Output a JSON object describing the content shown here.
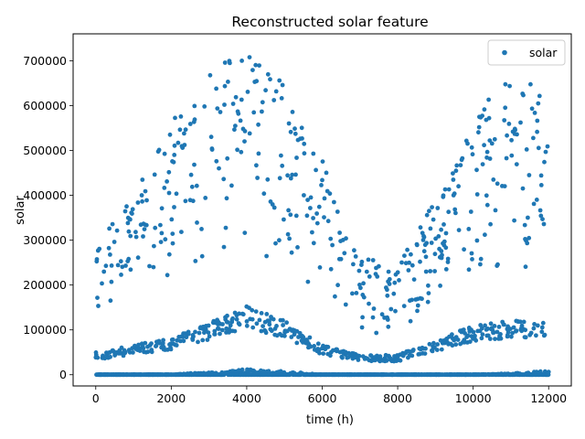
{
  "chart_data": {
    "type": "scatter",
    "title": "Reconstructed solar feature",
    "xlabel": "time (h)",
    "ylabel": "solar",
    "xlim": [
      -600,
      12600
    ],
    "ylim": [
      -25000,
      760000
    ],
    "xticks": [
      0,
      2000,
      4000,
      6000,
      8000,
      10000,
      12000
    ],
    "xtick_labels": [
      "0",
      "2000",
      "4000",
      "6000",
      "8000",
      "10000",
      "12000"
    ],
    "yticks": [
      0,
      100000,
      200000,
      300000,
      400000,
      500000,
      600000,
      700000
    ],
    "ytick_labels": [
      "0",
      "100000",
      "200000",
      "300000",
      "400000",
      "500000",
      "600000",
      "700000"
    ],
    "legend": {
      "position": "top-right",
      "entries": [
        "solar"
      ]
    },
    "grid": false,
    "series": [
      {
        "name": "solar",
        "color": "#1f77b4",
        "marker": "circle",
        "description_of_sampling": "hourly samples over time 0-12000; seasonal envelope with daily scatter",
        "envelope_keypoints": {
          "x": [
            0,
            1000,
            2000,
            3000,
            4000,
            5000,
            6000,
            7000,
            8000,
            9000,
            10000,
            11000,
            12000
          ],
          "peak_upper": [
            285000,
            400000,
            560000,
            690000,
            730000,
            650000,
            480000,
            260000,
            250000,
            390000,
            560000,
            690000,
            610000
          ],
          "mid_band": [
            45000,
            60000,
            75000,
            105000,
            140000,
            110000,
            60000,
            40000,
            40000,
            70000,
            100000,
            110000,
            110000
          ],
          "low_band": [
            0,
            0,
            0,
            6000,
            13000,
            8000,
            0,
            0,
            0,
            0,
            0,
            3000,
            9000
          ]
        }
      }
    ]
  }
}
